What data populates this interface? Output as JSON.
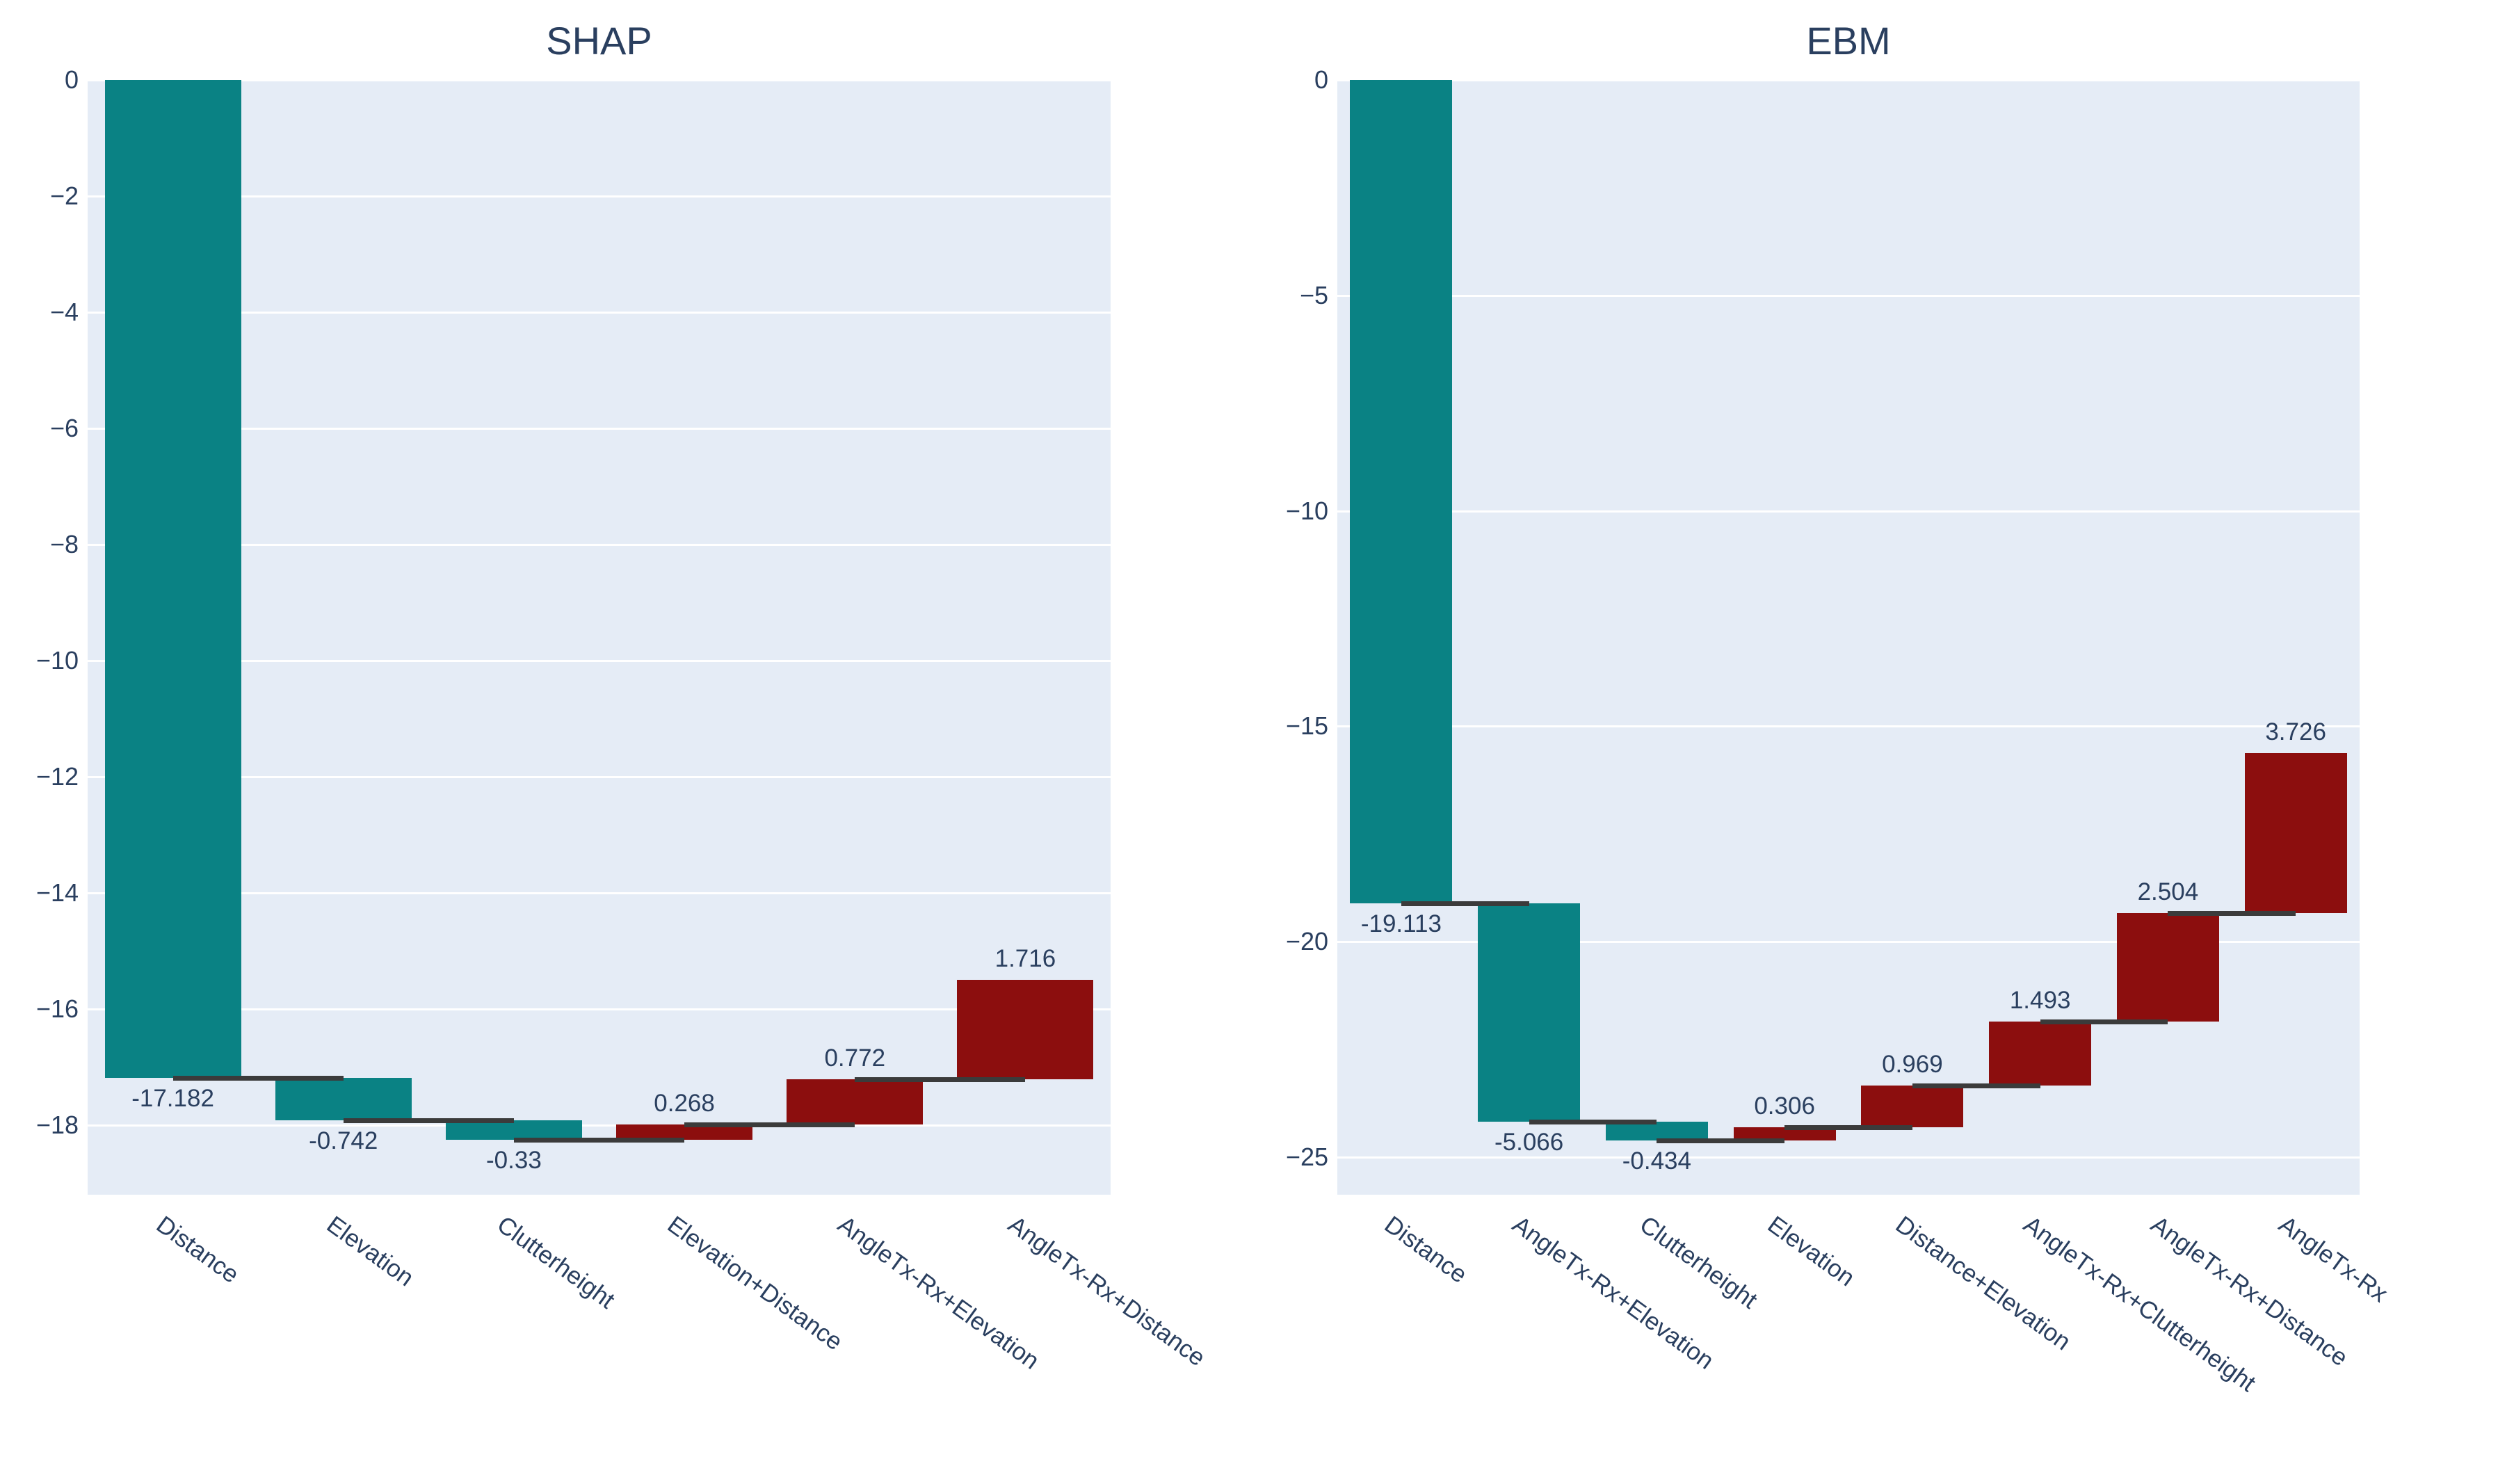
{
  "colors": {
    "canvas": "#ffffff",
    "plot_bg": "#e5ecf6",
    "grid": "#ffffff",
    "text": "#2a3f5f",
    "decreasing": "#0a8284",
    "increasing": "#8c0e0e",
    "connector": "#3b3b3b"
  },
  "chart_data": [
    {
      "type": "waterfall",
      "title": "SHAP",
      "orientation": "vertical",
      "categories": [
        "Distance",
        "Elevation",
        "Clutterheight",
        "Elevation+Distance",
        "AngleTx-Rx+Elevation",
        "AngleTx-Rx+Distance"
      ],
      "values": [
        -17.182,
        -0.742,
        -0.33,
        0.268,
        0.772,
        1.716
      ],
      "value_labels": [
        "-17.182",
        "-0.742",
        "-0.33",
        "0.268",
        "0.772",
        "1.716"
      ],
      "running_totals": [
        -17.182,
        -17.924,
        -18.254,
        -17.986,
        -17.214,
        -15.498
      ],
      "xlabel": "",
      "ylabel": "",
      "ylim": [
        -19.2,
        0
      ],
      "y_ticks": [
        0,
        -2,
        -4,
        -6,
        -8,
        -10,
        -12,
        -14,
        -16,
        -18
      ],
      "grid": true,
      "legend": false
    },
    {
      "type": "waterfall",
      "title": "EBM",
      "orientation": "vertical",
      "categories": [
        "Distance",
        "AngleTx-Rx+Elevation",
        "Clutterheight",
        "Elevation",
        "Distance+Elevation",
        "AngleTx-Rx+Clutterheight",
        "AngleTx-Rx+Distance",
        "AngleTx-Rx"
      ],
      "values": [
        -19.113,
        -5.066,
        -0.434,
        0.306,
        0.969,
        1.493,
        2.504,
        3.726
      ],
      "value_labels": [
        "-19.113",
        "-5.066",
        "-0.434",
        "0.306",
        "0.969",
        "1.493",
        "2.504",
        "3.726"
      ],
      "running_totals": [
        -19.113,
        -24.179,
        -24.613,
        -24.307,
        -23.338,
        -21.845,
        -19.341,
        -15.615
      ],
      "xlabel": "",
      "ylabel": "",
      "ylim": [
        -25.87,
        0
      ],
      "y_ticks": [
        0,
        -5,
        -10,
        -15,
        -20,
        -25
      ],
      "grid": true,
      "legend": false
    }
  ]
}
